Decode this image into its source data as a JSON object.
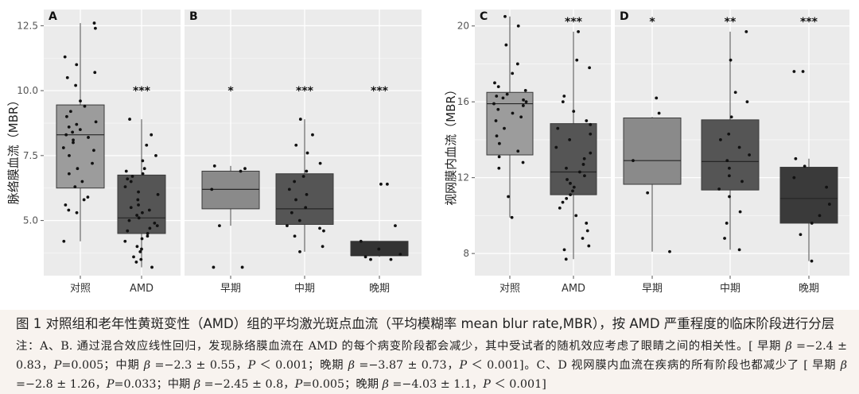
{
  "chart_data": [
    {
      "panel": "A",
      "type": "boxplot",
      "ylabel": "脉络膜血流（MBR）",
      "yticks": [
        5.0,
        7.5,
        10.0,
        12.5
      ],
      "ytick_labels": [
        "5.0",
        "7.5",
        "10.0",
        "12.5"
      ],
      "ylim": [
        3.0,
        13.0
      ],
      "groups": [
        {
          "label": "对照",
          "signif": "",
          "fill": "#9c9c9c",
          "q1": 6.25,
          "median": 8.3,
          "q3": 9.45,
          "whisker_low": 4.2,
          "whisker_high": 12.6,
          "points": [
            12.6,
            12.4,
            11.3,
            11.0,
            10.7,
            10.5,
            10.2,
            9.6,
            9.4,
            9.2,
            9.0,
            8.8,
            8.7,
            8.6,
            8.5,
            8.4,
            8.3,
            8.2,
            8.1,
            8.0,
            7.8,
            7.7,
            7.5,
            7.2,
            7.0,
            6.8,
            6.5,
            6.3,
            5.9,
            5.8,
            5.6,
            5.4,
            5.3,
            4.2
          ]
        },
        {
          "label": "AMD",
          "signif": "***",
          "fill": "#555555",
          "q1": 4.5,
          "median": 5.1,
          "q3": 6.75,
          "whisker_low": 3.2,
          "whisker_high": 8.9,
          "points": [
            8.9,
            8.3,
            7.9,
            7.5,
            7.3,
            7.0,
            6.9,
            6.8,
            6.7,
            6.6,
            6.5,
            6.3,
            6.1,
            6.0,
            5.8,
            5.6,
            5.5,
            5.4,
            5.3,
            5.2,
            5.1,
            5.0,
            4.9,
            4.8,
            4.7,
            4.6,
            4.5,
            4.4,
            4.3,
            4.2,
            4.0,
            3.9,
            3.8,
            3.6,
            3.5,
            3.4,
            3.2
          ]
        }
      ]
    },
    {
      "panel": "B",
      "type": "boxplot",
      "ylim": [
        3.0,
        13.0
      ],
      "groups": [
        {
          "label": "早期",
          "signif": "*",
          "fill": "#8a8a8a",
          "q1": 5.45,
          "median": 6.2,
          "q3": 6.9,
          "whisker_low": 4.8,
          "whisker_high": 7.1,
          "points": [
            7.1,
            7.0,
            6.9,
            6.2,
            4.8,
            3.2,
            3.2
          ]
        },
        {
          "label": "中期",
          "signif": "***",
          "fill": "#555555",
          "q1": 4.85,
          "median": 5.45,
          "q3": 6.8,
          "whisker_low": 3.8,
          "whisker_high": 8.9,
          "points": [
            8.9,
            8.3,
            7.9,
            7.6,
            7.2,
            6.9,
            6.7,
            6.5,
            6.2,
            6.0,
            5.8,
            5.5,
            5.3,
            5.0,
            4.8,
            4.7,
            4.6,
            4.4,
            4.0,
            3.8
          ]
        },
        {
          "label": "晚期",
          "signif": "***",
          "fill": "#333333",
          "q1": 3.65,
          "median": 3.65,
          "q3": 4.2,
          "whisker_low": 3.6,
          "whisker_high": 4.2,
          "points": [
            6.4,
            6.4,
            4.8,
            4.2,
            3.9,
            3.7,
            3.6,
            3.5,
            3.5
          ]
        }
      ]
    },
    {
      "panel": "C",
      "type": "boxplot",
      "ylabel": "视网膜内血流（MBR）",
      "yticks": [
        8,
        12,
        16,
        20
      ],
      "ytick_labels": [
        "8",
        "12",
        "16",
        "20"
      ],
      "ylim": [
        7.0,
        20.7
      ],
      "groups": [
        {
          "label": "对照",
          "signif": "",
          "fill": "#9c9c9c",
          "q1": 13.2,
          "median": 15.9,
          "q3": 16.5,
          "whisker_low": 9.9,
          "whisker_high": 20.5,
          "points": [
            20.5,
            20.0,
            19.0,
            18.0,
            17.5,
            17.0,
            16.8,
            16.6,
            16.4,
            16.3,
            16.2,
            16.1,
            16.0,
            15.9,
            15.8,
            15.6,
            15.4,
            15.2,
            15.0,
            14.6,
            14.2,
            13.8,
            13.4,
            13.1,
            12.8,
            12.5,
            11.0,
            9.9
          ]
        },
        {
          "label": "AMD",
          "signif": "***",
          "fill": "#555555",
          "q1": 11.1,
          "median": 12.3,
          "q3": 14.85,
          "whisker_low": 7.7,
          "whisker_high": 19.7,
          "points": [
            19.7,
            18.2,
            17.8,
            16.3,
            16.0,
            15.5,
            15.0,
            14.8,
            14.6,
            14.3,
            14.0,
            13.6,
            13.3,
            13.0,
            12.7,
            12.5,
            12.3,
            12.1,
            11.9,
            11.7,
            11.5,
            11.3,
            11.1,
            10.9,
            10.7,
            10.4,
            10.0,
            9.6,
            9.2,
            8.8,
            8.4,
            8.2,
            7.7
          ]
        }
      ]
    },
    {
      "panel": "D",
      "type": "boxplot",
      "ylim": [
        7.0,
        20.7
      ],
      "groups": [
        {
          "label": "早期",
          "signif": "*",
          "fill": "#8a8a8a",
          "q1": 11.65,
          "median": 12.9,
          "q3": 15.15,
          "whisker_low": 8.1,
          "whisker_high": 15.2,
          "points": [
            16.2,
            15.4,
            12.9,
            11.2,
            8.1
          ]
        },
        {
          "label": "中期",
          "signif": "**",
          "fill": "#555555",
          "q1": 11.35,
          "median": 12.85,
          "q3": 15.05,
          "whisker_low": 8.2,
          "whisker_high": 19.7,
          "points": [
            19.7,
            18.2,
            16.5,
            16.0,
            15.2,
            14.3,
            14.0,
            13.6,
            13.2,
            12.9,
            12.5,
            12.1,
            11.8,
            11.4,
            11.0,
            10.2,
            9.6,
            8.8,
            8.2
          ]
        },
        {
          "label": "晚期",
          "signif": "***",
          "fill": "#3a3a3a",
          "q1": 9.6,
          "median": 10.9,
          "q3": 12.55,
          "whisker_low": 7.6,
          "whisker_high": 13.0,
          "points": [
            17.6,
            17.6,
            13.0,
            12.6,
            12.0,
            11.5,
            10.6,
            10.0,
            9.6,
            9.0,
            7.6
          ]
        }
      ]
    }
  ],
  "caption": {
    "title": "图 1  对照组和老年性黄斑变性（AMD）组的平均激光斑点血流（平均模糊率 mean blur rate,MBR），按 AMD 严重程度的临床阶段进行分层",
    "note_parts": [
      "注：A、B. 通过混合效应线性回归，发现脉络膜血流在 AMD 的每个病变阶段都会减少，其中受试者的随机效应考虑了眼睛之间的相关性。[ 早期 ",
      "β",
      " =−2.4 ± 0.83，",
      "P",
      "=0.005；中期 ",
      "β",
      " =−2.3 ± 0.55，",
      "P",
      " ＜ 0.001；晚期 ",
      "β",
      " =−3.87 ± 0.73，",
      "P",
      " ＜ 0.001]。C、D 视网膜内血流在疾病的所有阶段也都减少了 [ 早期 ",
      "β",
      " =−2.8 ± 1.26，",
      "P",
      "=0.033；中期 ",
      "β",
      " =−2.45 ± 0.8，",
      "P",
      "=0.005；晚期 ",
      "β",
      " =−4.03 ± 1.1，",
      "P",
      " ＜ 0.001]"
    ]
  }
}
